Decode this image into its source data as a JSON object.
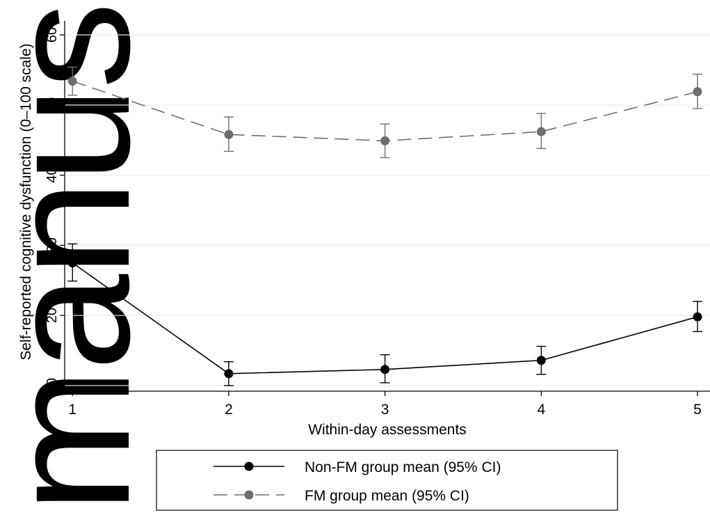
{
  "watermark": {
    "text": "manuscript",
    "color": "#d4d4d4"
  },
  "chart_data": {
    "type": "line",
    "title": "",
    "xlabel": "Within-day assessments",
    "ylabel": "Self-reported cognitive dysfunction (0–100 scale)",
    "x": [
      1,
      2,
      3,
      4,
      5
    ],
    "xticks": [
      "1",
      "2",
      "3",
      "4",
      "5"
    ],
    "yticks": [
      "10",
      "20",
      "30",
      "40",
      "50",
      "60"
    ],
    "xlim": [
      0.95,
      5.08
    ],
    "ylim": [
      9.2,
      62
    ],
    "grid": true,
    "legend_position": "bottom-center",
    "series": [
      {
        "name": "Non-FM group mean (95% CI)",
        "color": "#000000",
        "dash": "solid",
        "values": [
          27.5,
          11.7,
          12.3,
          13.6,
          19.8
        ],
        "ci_low": [
          24.9,
          10.0,
          10.4,
          11.6,
          17.7
        ],
        "ci_high": [
          30.2,
          13.4,
          14.4,
          15.6,
          22.0
        ]
      },
      {
        "name": "FM group mean (95% CI)",
        "color": "#6e6e6e",
        "dash": "dashed",
        "values": [
          53.4,
          45.8,
          44.9,
          46.2,
          51.9
        ],
        "ci_low": [
          51.4,
          43.4,
          42.5,
          43.8,
          49.5
        ],
        "ci_high": [
          55.4,
          48.3,
          47.3,
          48.8,
          54.4
        ]
      }
    ]
  }
}
